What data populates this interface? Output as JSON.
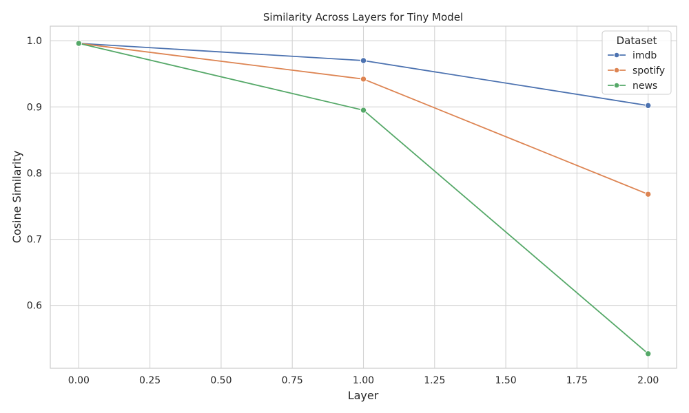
{
  "chart_data": {
    "type": "line",
    "title": "Similarity Across Layers for Tiny Model",
    "xlabel": "Layer",
    "ylabel": "Cosine Similarity",
    "xlim": [
      -0.1,
      2.1
    ],
    "ylim": [
      0.505,
      1.022
    ],
    "x_ticks": [
      "0.00",
      "0.25",
      "0.50",
      "0.75",
      "1.00",
      "1.25",
      "1.50",
      "1.75",
      "2.00"
    ],
    "y_ticks": [
      "0.6",
      "0.7",
      "0.8",
      "0.9",
      "1.0"
    ],
    "grid": true,
    "legend": {
      "title": "Dataset",
      "placement": "top-right"
    },
    "x": [
      0,
      1,
      2
    ],
    "series": [
      {
        "name": "imdb",
        "color": "#4c72b0",
        "values": [
          0.996,
          0.97,
          0.902
        ]
      },
      {
        "name": "spotify",
        "color": "#dd8452",
        "values": [
          0.996,
          0.942,
          0.768
        ]
      },
      {
        "name": "news",
        "color": "#55a868",
        "values": [
          0.996,
          0.895,
          0.527
        ]
      }
    ]
  }
}
